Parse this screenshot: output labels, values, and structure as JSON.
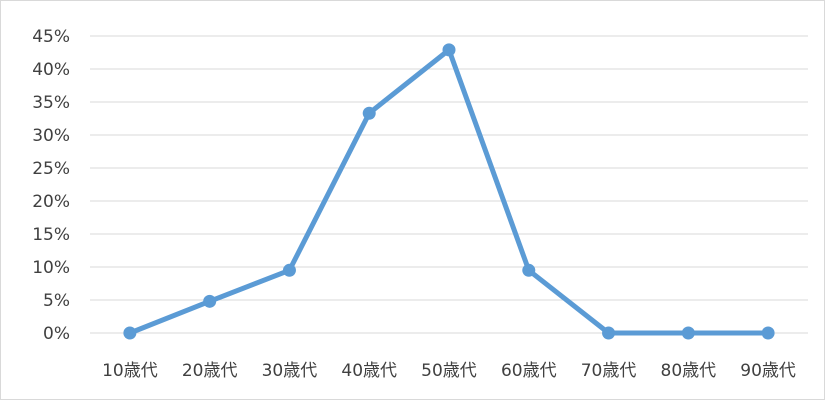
{
  "chart_data": {
    "type": "line",
    "title": "",
    "xlabel": "",
    "ylabel": "",
    "categories": [
      "10歳代",
      "20歳代",
      "30歳代",
      "40歳代",
      "50歳代",
      "60歳代",
      "70歳代",
      "80歳代",
      "90歳代"
    ],
    "series": [
      {
        "values": [
          0,
          4.8,
          9.5,
          33.3,
          42.9,
          9.5,
          0,
          0,
          0
        ]
      }
    ],
    "ylim": [
      0,
      45
    ],
    "yticks": [
      0,
      5,
      10,
      15,
      20,
      25,
      30,
      35,
      40,
      45
    ],
    "ytick_labels": [
      "0%",
      "5%",
      "10%",
      "15%",
      "20%",
      "25%",
      "30%",
      "35%",
      "40%",
      "45%"
    ],
    "grid": true,
    "legend": "none",
    "colors": {
      "line": "#5B9BD5",
      "grid": "#d9d9d9",
      "text": "#404040"
    }
  }
}
